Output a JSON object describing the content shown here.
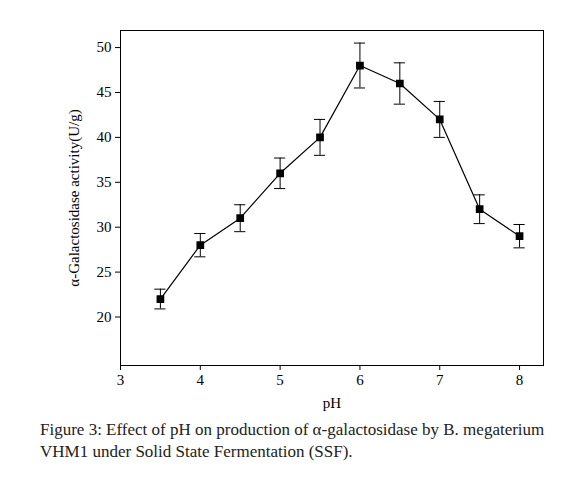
{
  "chart_data": {
    "type": "line",
    "caption": "Figure 3: Effect of pH on production of α-galactosidase by B. megaterium VHM1 under Solid State Fermentation (SSF).",
    "x_label": "pH",
    "y_label": "α-Galactosidase activity(U/g)",
    "x": [
      3.5,
      4,
      4.5,
      5,
      5.5,
      6,
      6.5,
      7,
      7.5,
      8
    ],
    "values": [
      22,
      28,
      31,
      36,
      40,
      48,
      46,
      42,
      32,
      29
    ],
    "errors": [
      1.1,
      1.3,
      1.5,
      1.7,
      2.0,
      2.5,
      2.3,
      2.0,
      1.6,
      1.3
    ],
    "color": "#000000",
    "marker": "square",
    "line_style": "solid",
    "xlim": [
      3,
      8.3
    ],
    "ylim": [
      14.6,
      51.9
    ],
    "xticks": [
      3,
      4,
      5,
      6,
      7,
      8
    ],
    "yticks": [
      20,
      25,
      30,
      35,
      40,
      45,
      50
    ],
    "grid": false
  }
}
